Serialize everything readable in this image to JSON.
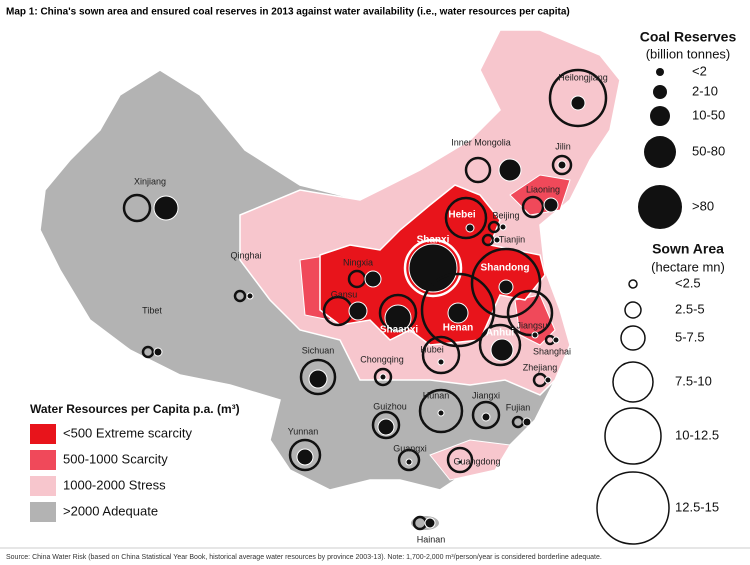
{
  "title": "Map 1: China's sown area and ensured coal reserves in 2013 against water availability (i.e., water resources per capita)",
  "provinces": [
    "Heilongjiang",
    "Inner Mongolia",
    "Jilin",
    "Xinjiang",
    "Liaoning",
    "Hebei",
    "Beijing",
    "Tianjin",
    "Qinghai",
    "Shanxi",
    "Ningxia",
    "Shandong",
    "Gansu",
    "Jiangsu",
    "Shaanxi",
    "Henan",
    "Anhui",
    "Tibet",
    "Hubei",
    "Shanghai",
    "Sichuan",
    "Chongqing",
    "Zhejiang",
    "Hunan",
    "Jiangxi",
    "Fujian",
    "Guizhou",
    "Yunnan",
    "Guangxi",
    "Guangdong",
    "Hainan"
  ],
  "legend_coal": {
    "title": "Coal Reserves",
    "subtitle": "(billion tonnes)",
    "items": [
      "<2",
      "2-10",
      "10-50",
      "50-80",
      ">80"
    ]
  },
  "legend_sown": {
    "title": "Sown Area",
    "subtitle": "(hectare mn)",
    "items": [
      "<2.5",
      "2.5-5",
      "5-7.5",
      "7.5-10",
      "10-12.5",
      "12.5-15"
    ]
  },
  "legend_water": {
    "title": "Water Resources per Capita p.a. (m³)",
    "items": [
      "<500 Extreme scarcity",
      "500-1000 Scarcity",
      "1000-2000 Stress",
      ">2000 Adequate"
    ]
  },
  "source": "Source: China Water Risk (based on China Statistical Year Book, historical average water resources by province 2003-13). Note: 1,700-2,000 m³/person/year is considered borderline adequate."
}
